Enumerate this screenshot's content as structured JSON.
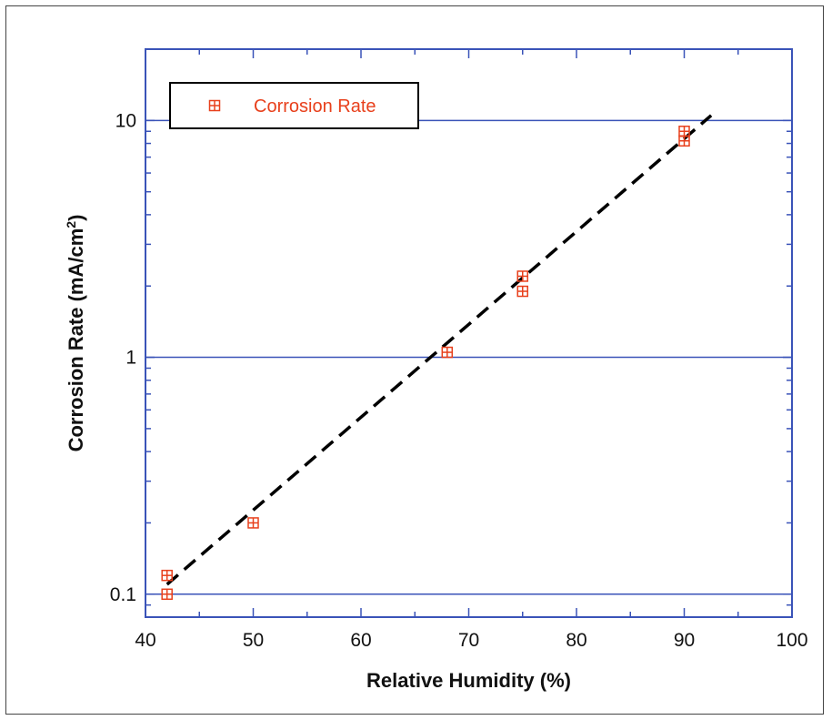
{
  "chart_data": {
    "type": "scatter",
    "xlabel": "Relative Humidity (%)",
    "ylabel_main": "Corrosion Rate (mA/cm",
    "ylabel_sup": "2",
    "ylabel_close": ")",
    "xlim": [
      40,
      100
    ],
    "ylim": [
      0.08,
      20
    ],
    "yscale": "log",
    "x_ticks": [
      "40",
      "50",
      "60",
      "70",
      "80",
      "90",
      "100"
    ],
    "y_ticks": [
      "0.1",
      "1",
      "10"
    ],
    "grid": "horizontal at decades",
    "legend_position": "top-left",
    "series": [
      {
        "name": "Corrosion Rate",
        "marker": "square-cross",
        "points": [
          {
            "x": 42,
            "y": 0.12
          },
          {
            "x": 42,
            "y": 0.1
          },
          {
            "x": 50,
            "y": 0.2
          },
          {
            "x": 68,
            "y": 1.05
          },
          {
            "x": 75,
            "y": 2.2
          },
          {
            "x": 75,
            "y": 1.9
          },
          {
            "x": 90,
            "y": 9.0
          },
          {
            "x": 90,
            "y": 8.2
          }
        ]
      }
    ],
    "fit_line": {
      "style": "dashed",
      "points": [
        {
          "x": 42,
          "y": 0.11
        },
        {
          "x": 92.5,
          "y": 10.5
        }
      ]
    }
  },
  "colors": {
    "axis": "#3a53b8",
    "grid": "#3a53b8",
    "marker": "#e8401c",
    "fit": "#000000"
  }
}
